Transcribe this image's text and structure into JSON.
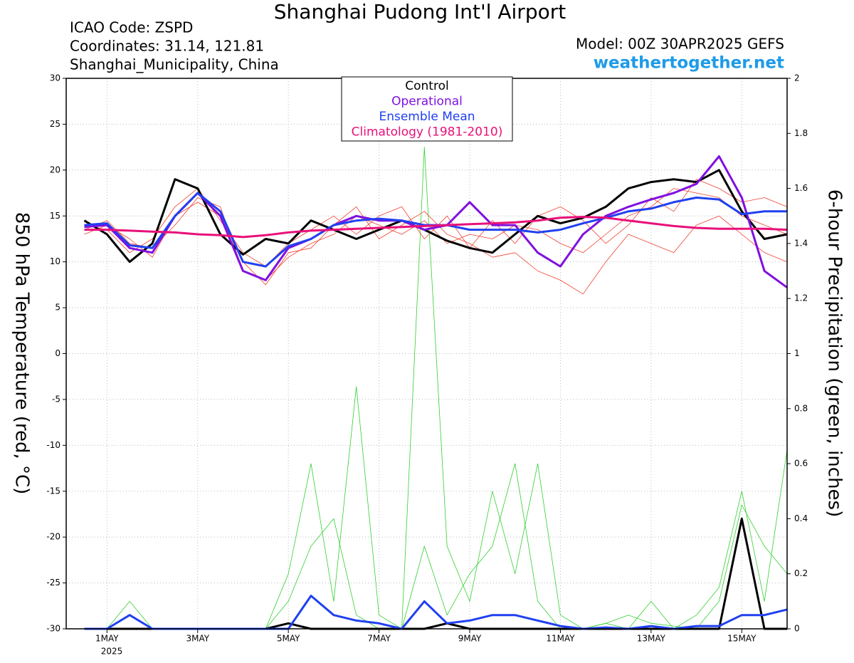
{
  "chart_data": {
    "type": "line",
    "title": "Shanghai Pudong Int'l Airport",
    "info_lines": [
      "ICAO Code: ZSPD",
      "Coordinates: 31.14, 121.81",
      "Shanghai_Municipality, China"
    ],
    "model": "Model: 00Z 30APR2025 GEFS",
    "website": "weathertogether.net",
    "y_label": "850 hPa Temperature (red, °C)",
    "y2_label": "6-hour Precipitation (green, inches)",
    "x_year_label": "2025",
    "x": [
      0.5,
      1,
      1.5,
      2,
      2.5,
      3,
      3.5,
      4,
      4.5,
      5,
      5.5,
      6,
      6.5,
      7,
      7.5,
      8,
      8.5,
      9,
      9.5,
      10,
      10.5,
      11,
      11.5,
      12,
      12.5,
      13,
      13.5,
      14,
      14.5,
      15,
      15.5,
      16
    ],
    "xlim": [
      0.1,
      16
    ],
    "xticks": [
      {
        "value": 1,
        "label": "1MAY"
      },
      {
        "value": 3,
        "label": "3MAY"
      },
      {
        "value": 5,
        "label": "5MAY"
      },
      {
        "value": 7,
        "label": "7MAY"
      },
      {
        "value": 9,
        "label": "9MAY"
      },
      {
        "value": 11,
        "label": "11MAY"
      },
      {
        "value": 13,
        "label": "13MAY"
      },
      {
        "value": 15,
        "label": "15MAY"
      }
    ],
    "ylim": [
      -30,
      30
    ],
    "yticks": [
      -30,
      -25,
      -20,
      -15,
      -10,
      -5,
      0,
      5,
      10,
      15,
      20,
      25,
      30
    ],
    "y2lim": [
      0,
      2
    ],
    "y2ticks": [
      0,
      0.2,
      0.4,
      0.6,
      0.8,
      1,
      1.2,
      1.4,
      1.6,
      1.8,
      2
    ],
    "grid": true,
    "ensemble_temperature": [
      {
        "color": "#f04030",
        "values": [
          13.5,
          14.5,
          12,
          11.5,
          14,
          17,
          16,
          9,
          8,
          10.5,
          12,
          13,
          15,
          14,
          13,
          14.5,
          12,
          13,
          12.5,
          14,
          13.5,
          12,
          11,
          13,
          15,
          16,
          18,
          17.5,
          17,
          15,
          14,
          13
        ]
      },
      {
        "color": "#f04030",
        "values": [
          14,
          13.5,
          11,
          12.5,
          16,
          18,
          14.5,
          11,
          9.5,
          12,
          13.5,
          15,
          13,
          15,
          16,
          12.5,
          15,
          11.5,
          14.5,
          12,
          15,
          16,
          14.5,
          12,
          14,
          17,
          15.5,
          19,
          18,
          16.5,
          17,
          16
        ]
      },
      {
        "color": "#f04030",
        "values": [
          13,
          14,
          12.5,
          10.5,
          15,
          16.5,
          15,
          10,
          7.5,
          11,
          11.5,
          14,
          16,
          12.5,
          14,
          15.5,
          13,
          12,
          10.5,
          11,
          9,
          8,
          6.5,
          10,
          13,
          12,
          11,
          14,
          15,
          13,
          11,
          10
        ]
      }
    ],
    "ensemble_precipitation": [
      {
        "color": "#30d030",
        "axis": "y2",
        "values": [
          0,
          0,
          0.1,
          0,
          0,
          0,
          0,
          0,
          0,
          0.2,
          0.6,
          0.1,
          0.88,
          0.05,
          0,
          1.75,
          0.3,
          0.1,
          0.5,
          0.2,
          0.6,
          0.05,
          0,
          0.02,
          0,
          0.1,
          0,
          0.05,
          0.15,
          0.5,
          0.1,
          0.65
        ]
      },
      {
        "color": "#30d030",
        "axis": "y2",
        "values": [
          0,
          0,
          0.05,
          0,
          0,
          0,
          0,
          0,
          0,
          0.1,
          0.3,
          0.4,
          0.05,
          0,
          0,
          0.3,
          0.05,
          0.2,
          0.3,
          0.6,
          0.1,
          0,
          0,
          0.02,
          0.05,
          0.02,
          0.01,
          0,
          0.1,
          0.45,
          0.3,
          0.2
        ]
      }
    ],
    "series": [
      {
        "name": "Control",
        "color": "#000000",
        "values": [
          14.5,
          13,
          10,
          12,
          19,
          18,
          13,
          10.8,
          12.5,
          12,
          14.5,
          13.5,
          12.5,
          13.5,
          14.5,
          13.5,
          12.3,
          11.5,
          11,
          13,
          15,
          14.2,
          14.8,
          16,
          18,
          18.7,
          19,
          18.7,
          20,
          15.5,
          12.5,
          13
        ]
      },
      {
        "name": "Operational",
        "color": "#8010e0",
        "values": [
          13.8,
          14,
          11.5,
          11,
          15,
          17.5,
          15,
          9,
          8,
          11.5,
          12.5,
          14,
          15,
          14.5,
          14.5,
          13.5,
          14,
          16.5,
          14,
          14,
          11,
          9.5,
          13,
          15,
          16,
          16.8,
          17.5,
          18.5,
          21.5,
          17,
          9,
          7.2
        ]
      },
      {
        "name": "Ensemble Mean",
        "color": "#2040f0",
        "values": [
          14,
          14.2,
          11.8,
          11.5,
          15,
          17.5,
          15.5,
          10,
          9.5,
          11.7,
          12.5,
          14,
          14.5,
          14.7,
          14.5,
          14,
          14,
          13.5,
          13.5,
          13.5,
          13.2,
          13.5,
          14.2,
          14.8,
          15.5,
          15.8,
          16.5,
          17,
          16.8,
          15.2,
          15.5,
          15.5
        ]
      },
      {
        "name": "Climatology (1981-2010)",
        "color": "#e8107a",
        "values": [
          13.5,
          13.5,
          13.4,
          13.3,
          13.2,
          13,
          12.9,
          12.7,
          12.9,
          13.2,
          13.4,
          13.5,
          13.6,
          13.7,
          13.8,
          13.9,
          14,
          14.1,
          14.2,
          14.3,
          14.5,
          14.8,
          14.9,
          14.8,
          14.5,
          14.2,
          13.9,
          13.7,
          13.6,
          13.6,
          13.6,
          13.5
        ]
      }
    ],
    "precipitation_series": [
      {
        "color": "#000000",
        "axis": "y2",
        "values": [
          0,
          0,
          0,
          0,
          0,
          0,
          0,
          0,
          0,
          0.02,
          0,
          0,
          0,
          0,
          0,
          0,
          0.02,
          0,
          0,
          0,
          0,
          0,
          0,
          0,
          0,
          0,
          0,
          0,
          0,
          0.4,
          0,
          0
        ]
      },
      {
        "color": "#2040f0",
        "axis": "y2",
        "values": [
          0,
          0,
          0.05,
          0,
          0,
          0,
          0,
          0,
          0,
          0,
          0.12,
          0.05,
          0.03,
          0.02,
          0,
          0.1,
          0.02,
          0.03,
          0.05,
          0.05,
          0.03,
          0.01,
          0,
          0.005,
          0,
          0.01,
          0,
          0.01,
          0.01,
          0.05,
          0.05,
          0.07
        ]
      }
    ]
  }
}
